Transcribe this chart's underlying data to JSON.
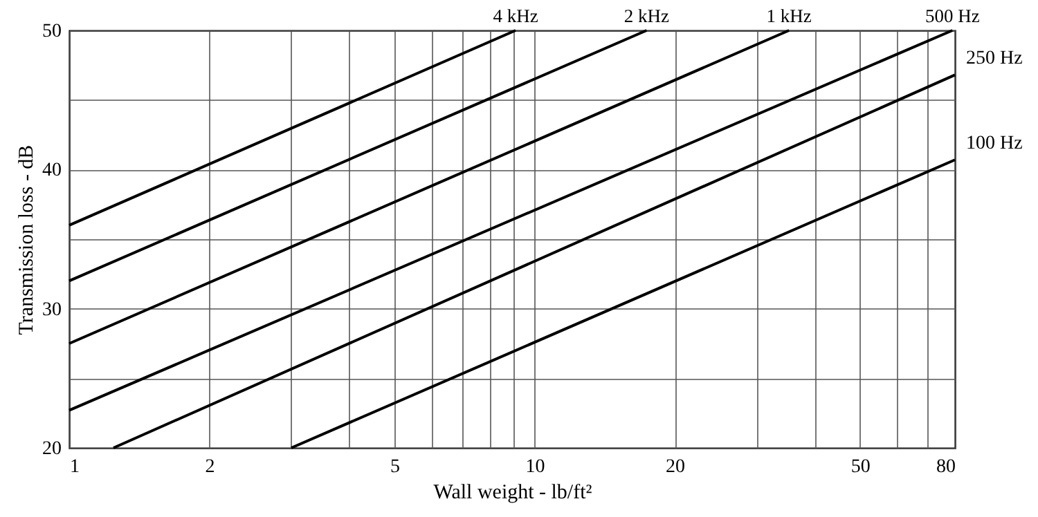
{
  "chart_data": {
    "type": "line",
    "xlabel": "Wall weight - lb/ft²",
    "ylabel": "Transmission loss - dB",
    "log": "x",
    "grid": true,
    "line_style": "solid",
    "marker": "none",
    "xlim": [
      1,
      80
    ],
    "ylim": [
      20,
      50
    ],
    "xticks": [
      1,
      2,
      {
        "value": 3,
        "label": null
      },
      {
        "value": 4,
        "label": null
      },
      5,
      {
        "value": 6,
        "label": null
      },
      {
        "value": 7,
        "label": null
      },
      {
        "value": 8,
        "label": null
      },
      {
        "value": 9,
        "label": null
      },
      10,
      20,
      {
        "value": 30,
        "label": null
      },
      {
        "value": 40,
        "label": null
      },
      50,
      {
        "value": 60,
        "label": null
      },
      {
        "value": 70,
        "label": null
      },
      80
    ],
    "yticks": [
      20,
      {
        "value": 25,
        "label": null
      },
      30,
      {
        "value": 35,
        "label": null
      },
      40,
      {
        "value": 45,
        "label": null
      },
      50
    ],
    "series": [
      {
        "name": "4 kHz",
        "color": "#000000",
        "x": [
          1,
          9.1
        ],
        "values": [
          36,
          50
        ]
      },
      {
        "name": "2 kHz",
        "color": "#000000",
        "x": [
          1,
          17.4
        ],
        "values": [
          32,
          50
        ]
      },
      {
        "name": "1 kHz",
        "color": "#000000",
        "x": [
          1,
          35.2
        ],
        "values": [
          27.5,
          50
        ]
      },
      {
        "name": "500 Hz",
        "color": "#000000",
        "x": [
          1,
          79
        ],
        "values": [
          22.7,
          50
        ]
      },
      {
        "name": "250 Hz",
        "color": "#000000",
        "x": [
          1.245,
          80
        ],
        "values": [
          20,
          46.8
        ]
      },
      {
        "name": "100 Hz",
        "color": "#000000",
        "x": [
          3,
          80
        ],
        "values": [
          20,
          40.7
        ]
      }
    ]
  }
}
